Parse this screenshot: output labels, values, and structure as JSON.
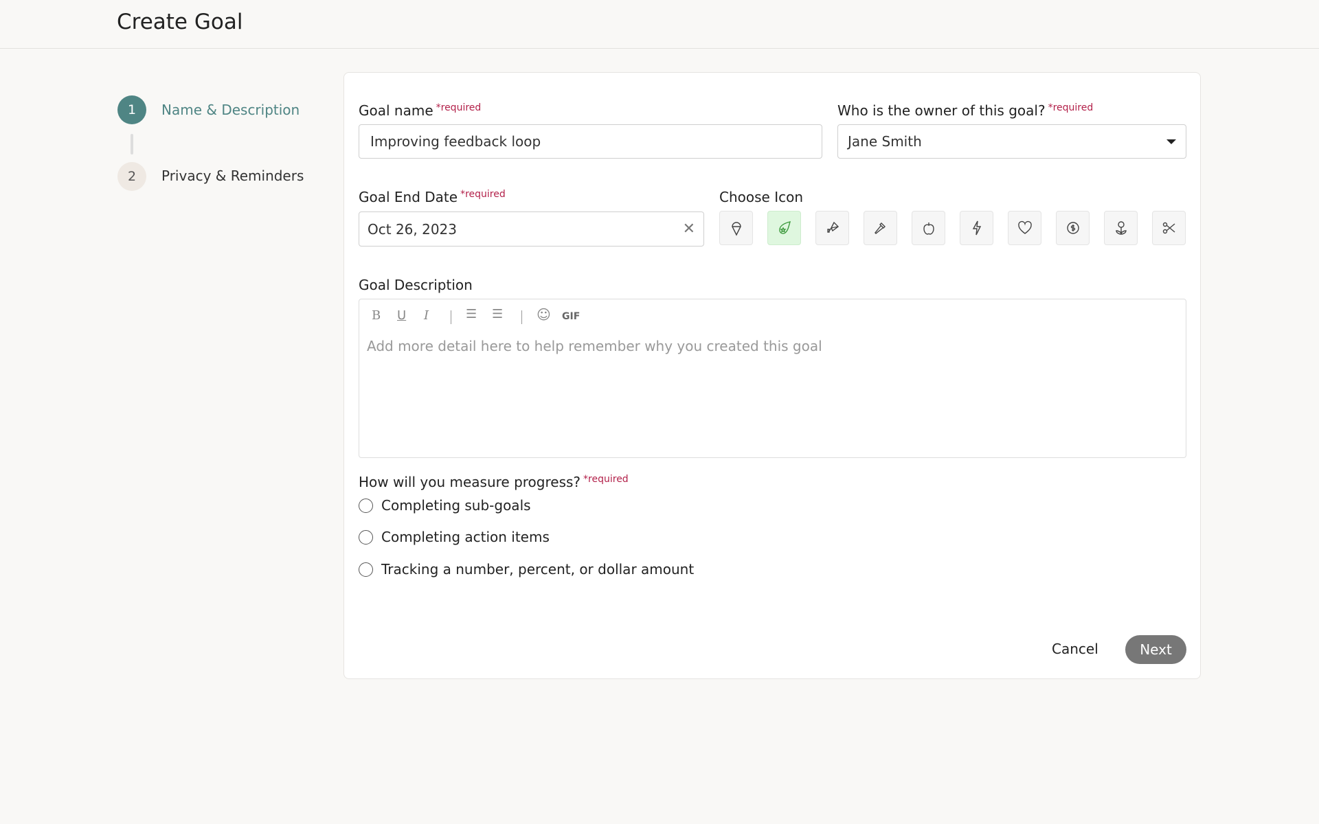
{
  "header": {
    "title": "Create Goal"
  },
  "steps": [
    {
      "number": "1",
      "label": "Name & Description",
      "active": true
    },
    {
      "number": "2",
      "label": "Privacy & Reminders",
      "active": false
    }
  ],
  "colors": {
    "accent": "#4f8584",
    "required": "#b3214a",
    "selected_icon_bg": "#dff7df",
    "next_button": "#777777"
  },
  "form": {
    "required_text": "*required",
    "goal_name": {
      "label": "Goal name",
      "value": "Improving feedback loop"
    },
    "owner": {
      "label": "Who is the owner of this goal?",
      "value": "Jane Smith"
    },
    "end_date": {
      "label": "Goal End Date",
      "value": "Oct 26, 2023"
    },
    "choose_icon": {
      "label": "Choose Icon",
      "icons": [
        "ice-cream-icon",
        "comet-star-icon",
        "kite-icon",
        "hammer-icon",
        "apple-icon",
        "lightning-icon",
        "heart-icon",
        "dollar-badge-icon",
        "flower-icon",
        "scissors-icon"
      ],
      "selected": "comet-star-icon"
    },
    "description": {
      "label": "Goal Description",
      "placeholder": "Add more detail here to help remember why you created this goal",
      "toolbar": {
        "bold": "B",
        "underline": "U",
        "italic": "I",
        "gif": "GIF"
      }
    },
    "measure": {
      "label": "How will you measure progress?",
      "options": [
        "Completing sub-goals",
        "Completing action items",
        "Tracking a number, percent, or dollar amount"
      ]
    },
    "cancel": "Cancel",
    "next": "Next"
  }
}
